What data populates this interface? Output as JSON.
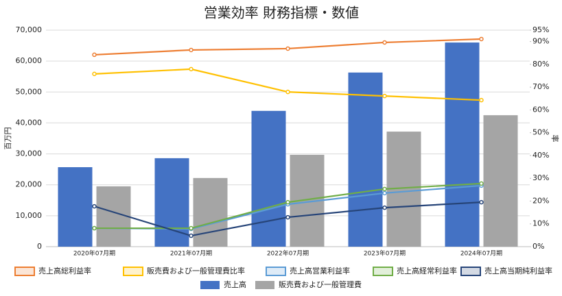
{
  "chart_data": {
    "type": "combo",
    "title": "営業効率 財務指標・数値",
    "y_label": "百万円",
    "y2_label": "率",
    "categories": [
      "2020年07月期",
      "2021年07月期",
      "2022年07月期",
      "2023年07月期",
      "2024年07月期"
    ],
    "ylim": [
      0,
      70000
    ],
    "yticks": [
      0,
      {
        "value": 10000,
        "label": "10,000"
      },
      {
        "value": 20000,
        "label": "20,000"
      },
      {
        "value": 30000,
        "label": "30,000"
      },
      {
        "value": 40000,
        "label": "40,000"
      },
      {
        "value": 50000,
        "label": "50,000"
      },
      {
        "value": 60000,
        "label": "60,000"
      },
      {
        "value": 70000,
        "label": "70,000"
      }
    ],
    "y2lim": [
      0,
      95
    ],
    "y2ticks": [
      {
        "value": 0,
        "label": "0%"
      },
      {
        "value": 10,
        "label": "10%"
      },
      {
        "value": 20,
        "label": "20%"
      },
      {
        "value": 30,
        "label": "30%"
      },
      {
        "value": 40,
        "label": "40%"
      },
      {
        "value": 50,
        "label": "50%"
      },
      {
        "value": 60,
        "label": "60%"
      },
      {
        "value": 70,
        "label": "70%"
      },
      {
        "value": 80,
        "label": "80%"
      },
      {
        "value": 90,
        "label": "90%"
      },
      {
        "value": 95,
        "label": "95%"
      }
    ],
    "grid": true,
    "series": [
      {
        "name": "売上高総利益率",
        "type": "line",
        "axis": "y2",
        "color": "#ed7d31",
        "values": [
          84.2,
          86.3,
          86.9,
          89.6,
          91.1
        ]
      },
      {
        "name": "販売費および一般管理費比率",
        "type": "line",
        "axis": "y2",
        "color": "#ffc000",
        "values": [
          75.8,
          77.9,
          67.9,
          66.1,
          64.3
        ]
      },
      {
        "name": "売上高営業利益率",
        "type": "line",
        "axis": "y2",
        "color": "#5b9bd5",
        "values": [
          8.1,
          7.8,
          18.6,
          23.5,
          26.8
        ]
      },
      {
        "name": "売上高経常利益率",
        "type": "line",
        "axis": "y2",
        "color": "#70ad47",
        "values": [
          8.1,
          8.1,
          19.5,
          25.3,
          27.7
        ]
      },
      {
        "name": "売上高当期純利益率",
        "type": "line",
        "axis": "y2",
        "color": "#264478",
        "values": [
          17.7,
          4.8,
          12.9,
          17.1,
          19.5
        ]
      },
      {
        "name": "売上高",
        "type": "bar",
        "color": "#4472c4",
        "values": [
          25700,
          28600,
          43900,
          56300,
          66000
        ]
      },
      {
        "name": "販売費および一般管理費",
        "type": "bar",
        "color": "#a5a5a5",
        "values": [
          19500,
          22200,
          29700,
          37200,
          42500
        ]
      }
    ]
  }
}
